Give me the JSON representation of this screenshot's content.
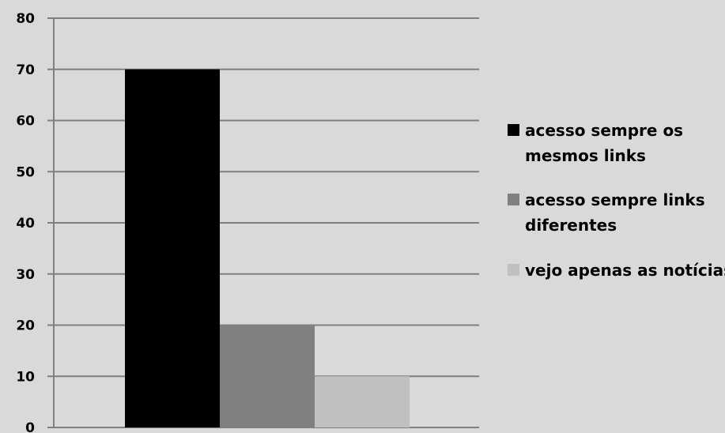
{
  "chart_data": {
    "type": "bar",
    "title": "",
    "xlabel": "",
    "ylabel": "",
    "ylim": [
      0,
      80
    ],
    "yticks": [
      0,
      10,
      20,
      30,
      40,
      50,
      60,
      70,
      80
    ],
    "grid": true,
    "legend_position": "right",
    "series": [
      {
        "name": "acesso sempre os mesmos links",
        "legend_lines": [
          "acesso sempre os",
          "mesmos links"
        ],
        "value": 70,
        "color": "#000000"
      },
      {
        "name": "acesso sempre links diferentes",
        "legend_lines": [
          "acesso sempre links",
          "diferentes"
        ],
        "value": 20,
        "color": "#808080"
      },
      {
        "name": "vejo apenas as notícias",
        "legend_lines": [
          "vejo apenas as notícias"
        ],
        "value": 10,
        "color": "#c0c0c0"
      }
    ]
  }
}
